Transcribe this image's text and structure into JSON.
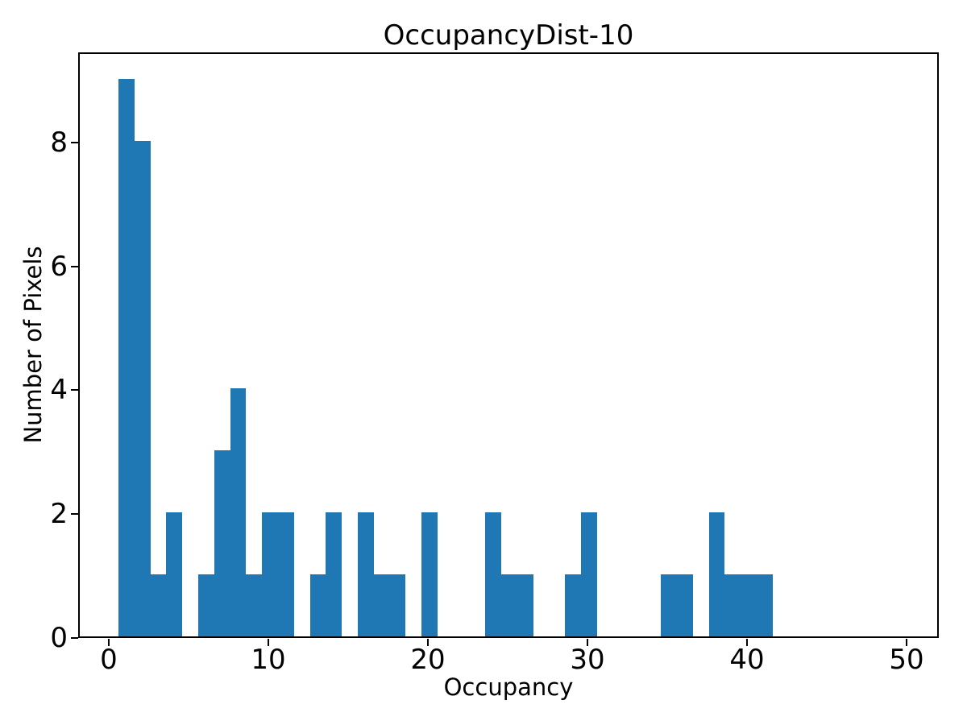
{
  "chart_data": {
    "type": "bar",
    "subtype": "histogram",
    "title": "OccupancyDist-10",
    "xlabel": "Occupancy",
    "ylabel": "Number of Pixels",
    "bar_color": "#1f77b4",
    "bin_width": 1,
    "bin_centers": [
      1,
      2,
      3,
      4,
      5,
      6,
      7,
      8,
      9,
      10,
      11,
      12,
      13,
      14,
      15,
      16,
      17,
      18,
      19,
      20,
      21,
      22,
      23,
      24,
      25,
      26,
      27,
      28,
      29,
      30,
      31,
      32,
      33,
      34,
      35,
      36,
      37,
      38,
      39,
      40,
      41
    ],
    "counts": [
      9,
      8,
      1,
      2,
      0,
      1,
      3,
      4,
      1,
      2,
      2,
      0,
      1,
      2,
      0,
      2,
      1,
      1,
      0,
      2,
      0,
      0,
      0,
      2,
      1,
      1,
      0,
      0,
      1,
      2,
      0,
      0,
      0,
      0,
      1,
      1,
      0,
      2,
      1,
      1,
      1
    ],
    "x_ticks": [
      0,
      10,
      20,
      30,
      40,
      50
    ],
    "y_ticks": [
      0,
      2,
      4,
      6,
      8
    ],
    "xlim": [
      -1.92,
      52.02
    ],
    "ylim": [
      0,
      9.455
    ],
    "grid": false,
    "legend": null
  }
}
